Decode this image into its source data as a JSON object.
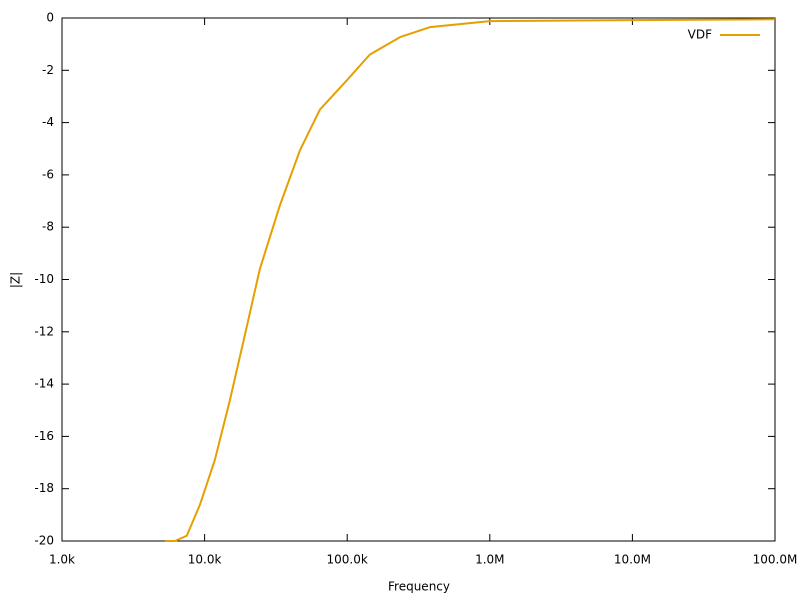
{
  "chart_data": {
    "type": "line",
    "xlabel": "Frequency",
    "ylabel": "|Z|",
    "xscale": "log",
    "xlim": [
      1000,
      100000000
    ],
    "ylim": [
      -20,
      0
    ],
    "xticks": [
      {
        "value": 1000,
        "label": "1.0k"
      },
      {
        "value": 10000,
        "label": "10.0k"
      },
      {
        "value": 100000,
        "label": "100.0k"
      },
      {
        "value": 1000000,
        "label": "1.0M"
      },
      {
        "value": 10000000,
        "label": "10.0M"
      },
      {
        "value": 100000000,
        "label": "100.0M"
      }
    ],
    "yticks": [
      0,
      -2,
      -4,
      -6,
      -8,
      -10,
      -12,
      -14,
      -16,
      -18,
      -20
    ],
    "legend": "top-right",
    "series": [
      {
        "name": "VDF",
        "color": "#e69f00",
        "x": [
          5270,
          6190,
          7500,
          9290,
          11800,
          15070,
          19200,
          24400,
          33800,
          46700,
          64400,
          100000,
          144000,
          235000,
          380000,
          1000000,
          10000000,
          100000000
        ],
        "values": [
          -20,
          -20,
          -19.8,
          -18.6,
          -16.9,
          -14.6,
          -12.1,
          -9.6,
          -7.15,
          -5.05,
          -3.5,
          -2.37,
          -1.4,
          -0.73,
          -0.35,
          -0.12,
          -0.08,
          -0.05
        ]
      }
    ]
  }
}
